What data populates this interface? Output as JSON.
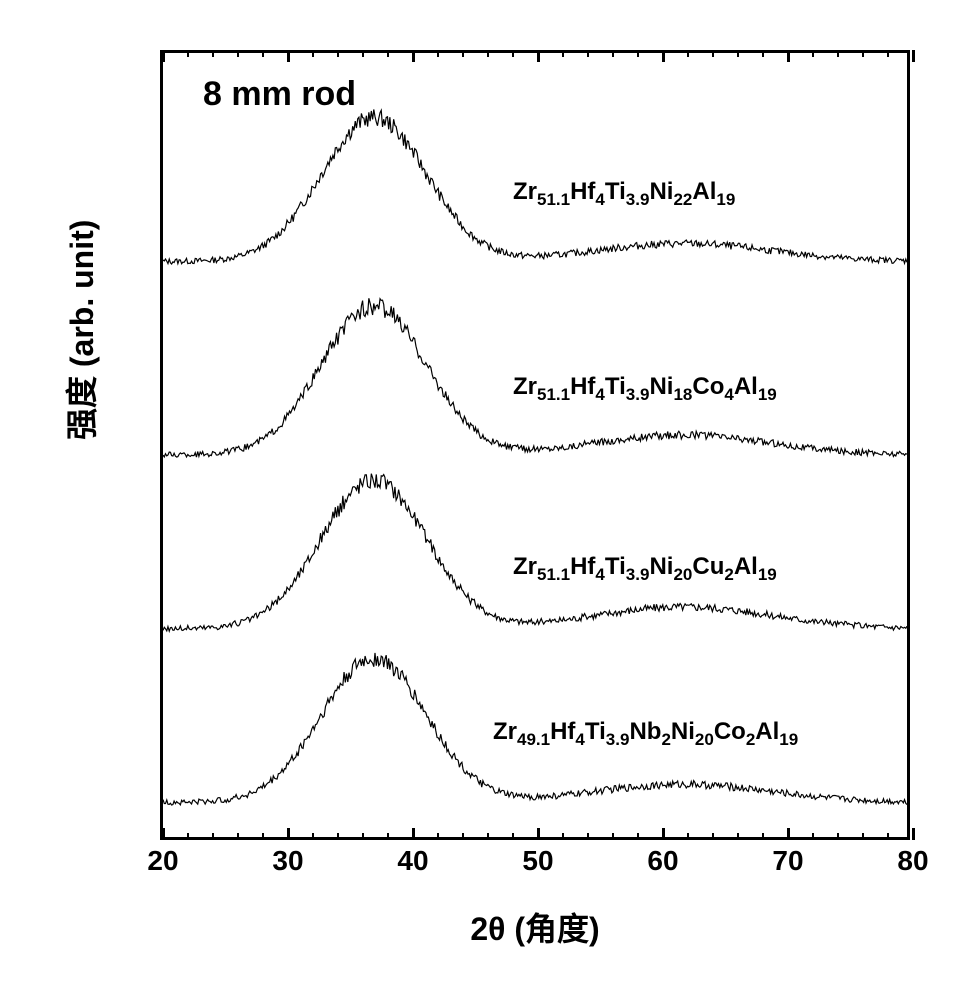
{
  "chart": {
    "type": "line",
    "title": "8 mm rod",
    "title_fontsize": 34,
    "xlabel": "2θ (角度)",
    "ylabel": "强度 (arb. unit)",
    "label_fontsize": 32,
    "xlim": [
      20,
      80
    ],
    "xtick_step": 10,
    "xtick_minor_step": 2,
    "xtick_labels": [
      "20",
      "30",
      "40",
      "50",
      "60",
      "70",
      "80"
    ],
    "background_color": "#ffffff",
    "border_color": "#000000",
    "line_color": "#000000",
    "series": [
      {
        "label_html": "Zr<sub>51.1</sub>Hf<sub>4</sub>Ti<sub>3.9</sub>Ni<sub>22</sub>Al<sub>19</sub>",
        "label_x": 350,
        "label_y": 125,
        "baseline_y": 210,
        "peak_center": 37,
        "peak_height": 145,
        "peak_width": 6,
        "secondary_center": 62,
        "secondary_height": 18,
        "secondary_width": 10
      },
      {
        "label_html": "Zr<sub>51.1</sub>Hf<sub>4</sub>Ti<sub>3.9</sub>Ni<sub>18</sub>Co<sub>4</sub>Al<sub>19</sub>",
        "label_x": 350,
        "label_y": 320,
        "baseline_y": 405,
        "peak_center": 37,
        "peak_height": 150,
        "peak_width": 6,
        "secondary_center": 62,
        "secondary_height": 20,
        "secondary_width": 10
      },
      {
        "label_html": "Zr<sub>51.1</sub>Hf<sub>4</sub>Ti<sub>3.9</sub>Ni<sub>20</sub>Cu<sub>2</sub>Al<sub>19</sub>",
        "label_x": 350,
        "label_y": 500,
        "baseline_y": 580,
        "peak_center": 37,
        "peak_height": 150,
        "peak_width": 6,
        "secondary_center": 62,
        "secondary_height": 22,
        "secondary_width": 10
      },
      {
        "label_html": "Zr<sub>49.1</sub>Hf<sub>4</sub>Ti<sub>3.9</sub>Nb<sub>2</sub>Ni<sub>20</sub>Co<sub>2</sub>Al<sub>19</sub>",
        "label_x": 330,
        "label_y": 665,
        "baseline_y": 755,
        "peak_center": 37,
        "peak_height": 145,
        "peak_width": 6,
        "secondary_center": 62,
        "secondary_height": 18,
        "secondary_width": 10
      }
    ]
  }
}
